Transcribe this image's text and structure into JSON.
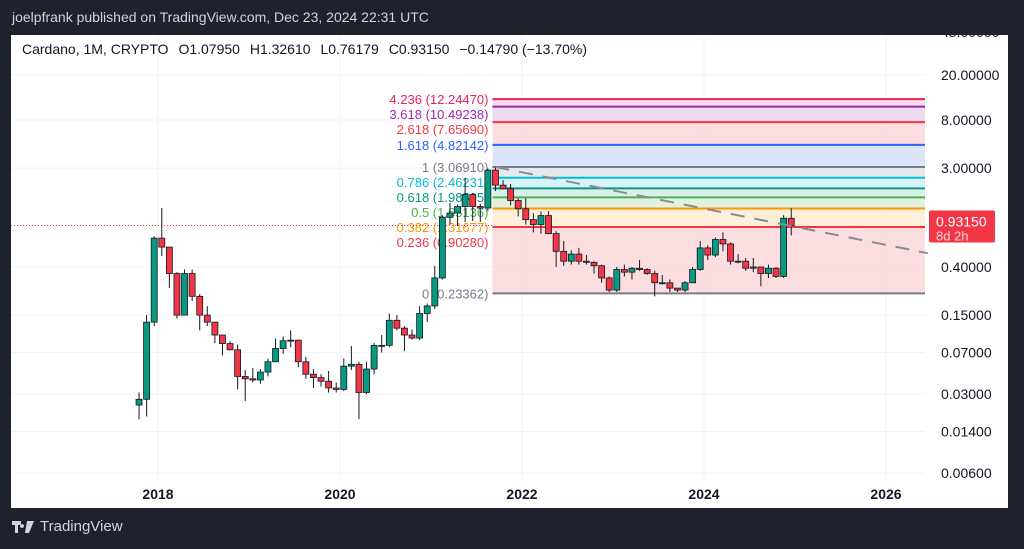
{
  "header": {
    "published": "joelpfrank published on TradingView.com, Dec 23, 2024 22:31 UTC"
  },
  "legend": {
    "symbol": "Cardano, 1M, CRYPTO",
    "open": "O1.07950",
    "high": "H1.32610",
    "low": "L0.76179",
    "close": "C0.93150",
    "change": "−0.14790 (−13.70%)"
  },
  "footer": {
    "brand": "TradingView"
  },
  "colors": {
    "up": "#089981",
    "down": "#f23645",
    "price_label": "#f23645"
  },
  "chart_data": {
    "type": "candlestick",
    "y_scale": "log",
    "grid": true,
    "x_ticks": [
      "2018",
      "2020",
      "2022",
      "2024",
      "2026"
    ],
    "y_ticks": [
      "48.00000",
      "20.00000",
      "8.00000",
      "3.00000",
      "0.40000",
      "0.15000",
      "0.07000",
      "0.03000",
      "0.01400",
      "0.00600"
    ],
    "last_price": {
      "value": "0.93150",
      "countdown": "8d 2h"
    },
    "candles": [
      [
        "2017-10",
        0.024,
        0.031,
        0.018,
        0.027
      ],
      [
        "2017-11",
        0.027,
        0.15,
        0.019,
        0.13
      ],
      [
        "2017-12",
        0.13,
        0.75,
        0.12,
        0.72
      ],
      [
        "2018-01",
        0.72,
        1.33,
        0.5,
        0.6
      ],
      [
        "2018-02",
        0.6,
        0.6,
        0.26,
        0.35
      ],
      [
        "2018-03",
        0.35,
        0.36,
        0.14,
        0.15
      ],
      [
        "2018-04",
        0.15,
        0.38,
        0.15,
        0.35
      ],
      [
        "2018-05",
        0.35,
        0.38,
        0.2,
        0.22
      ],
      [
        "2018-06",
        0.22,
        0.23,
        0.11,
        0.15
      ],
      [
        "2018-07",
        0.15,
        0.18,
        0.12,
        0.13
      ],
      [
        "2018-08",
        0.13,
        0.13,
        0.085,
        0.1
      ],
      [
        "2018-09",
        0.1,
        0.1,
        0.066,
        0.084
      ],
      [
        "2018-10",
        0.084,
        0.088,
        0.073,
        0.074
      ],
      [
        "2018-11",
        0.074,
        0.082,
        0.033,
        0.043
      ],
      [
        "2018-12",
        0.043,
        0.049,
        0.026,
        0.041
      ],
      [
        "2019-01",
        0.041,
        0.051,
        0.038,
        0.04
      ],
      [
        "2019-02",
        0.04,
        0.05,
        0.037,
        0.047
      ],
      [
        "2019-03",
        0.047,
        0.062,
        0.043,
        0.058
      ],
      [
        "2019-04",
        0.058,
        0.093,
        0.058,
        0.076
      ],
      [
        "2019-05",
        0.076,
        0.097,
        0.068,
        0.089
      ],
      [
        "2019-06",
        0.089,
        0.11,
        0.078,
        0.09
      ],
      [
        "2019-07",
        0.09,
        0.091,
        0.052,
        0.058
      ],
      [
        "2019-08",
        0.058,
        0.064,
        0.041,
        0.045
      ],
      [
        "2019-09",
        0.045,
        0.05,
        0.034,
        0.042
      ],
      [
        "2019-10",
        0.042,
        0.045,
        0.035,
        0.039
      ],
      [
        "2019-11",
        0.039,
        0.048,
        0.031,
        0.034
      ],
      [
        "2019-12",
        0.034,
        0.038,
        0.031,
        0.033
      ],
      [
        "2020-01",
        0.033,
        0.062,
        0.032,
        0.053
      ],
      [
        "2020-02",
        0.053,
        0.08,
        0.049,
        0.055
      ],
      [
        "2020-03",
        0.055,
        0.058,
        0.018,
        0.031
      ],
      [
        "2020-04",
        0.031,
        0.058,
        0.03,
        0.05
      ],
      [
        "2020-05",
        0.05,
        0.085,
        0.045,
        0.081
      ],
      [
        "2020-06",
        0.081,
        0.1,
        0.07,
        0.081
      ],
      [
        "2020-07",
        0.081,
        0.155,
        0.078,
        0.135
      ],
      [
        "2020-08",
        0.135,
        0.15,
        0.11,
        0.115
      ],
      [
        "2020-09",
        0.115,
        0.12,
        0.072,
        0.1
      ],
      [
        "2020-10",
        0.1,
        0.112,
        0.091,
        0.094
      ],
      [
        "2020-11",
        0.094,
        0.18,
        0.09,
        0.155
      ],
      [
        "2020-12",
        0.155,
        0.19,
        0.13,
        0.181
      ],
      [
        "2021-01",
        0.181,
        0.41,
        0.17,
        0.32
      ],
      [
        "2021-02",
        0.32,
        1.15,
        0.31,
        1.1
      ],
      [
        "2021-03",
        1.1,
        1.48,
        0.95,
        1.2
      ],
      [
        "2021-04",
        1.2,
        1.43,
        0.92,
        1.37
      ],
      [
        "2021-05",
        1.37,
        2.47,
        1.0,
        1.75
      ],
      [
        "2021-06",
        1.75,
        1.81,
        1.02,
        1.37
      ],
      [
        "2021-07",
        1.37,
        1.45,
        1.0,
        1.33
      ],
      [
        "2021-08",
        1.33,
        2.97,
        1.25,
        2.88
      ],
      [
        "2021-09",
        2.88,
        3.1,
        1.88,
        2.12
      ],
      [
        "2021-10",
        2.12,
        2.35,
        1.94,
        1.97
      ],
      [
        "2021-11",
        1.97,
        2.17,
        1.4,
        1.55
      ],
      [
        "2021-12",
        1.55,
        1.62,
        1.12,
        1.31
      ],
      [
        "2022-01",
        1.31,
        1.62,
        0.95,
        1.05
      ],
      [
        "2022-02",
        1.05,
        1.2,
        0.81,
        0.95
      ],
      [
        "2022-03",
        0.95,
        1.24,
        0.79,
        1.14
      ],
      [
        "2022-04",
        1.14,
        1.25,
        0.78,
        0.79
      ],
      [
        "2022-05",
        0.79,
        0.83,
        0.4,
        0.55
      ],
      [
        "2022-06",
        0.55,
        0.68,
        0.41,
        0.45
      ],
      [
        "2022-07",
        0.45,
        0.56,
        0.42,
        0.52
      ],
      [
        "2022-08",
        0.52,
        0.59,
        0.42,
        0.45
      ],
      [
        "2022-09",
        0.45,
        0.51,
        0.42,
        0.44
      ],
      [
        "2022-10",
        0.44,
        0.45,
        0.35,
        0.41
      ],
      [
        "2022-11",
        0.41,
        0.42,
        0.29,
        0.32
      ],
      [
        "2022-12",
        0.32,
        0.33,
        0.24,
        0.25
      ],
      [
        "2023-01",
        0.25,
        0.4,
        0.24,
        0.38
      ],
      [
        "2023-02",
        0.38,
        0.42,
        0.33,
        0.36
      ],
      [
        "2023-03",
        0.36,
        0.4,
        0.31,
        0.39
      ],
      [
        "2023-04",
        0.39,
        0.46,
        0.37,
        0.38
      ],
      [
        "2023-05",
        0.38,
        0.39,
        0.34,
        0.35
      ],
      [
        "2023-06",
        0.35,
        0.37,
        0.22,
        0.29
      ],
      [
        "2023-07",
        0.29,
        0.34,
        0.28,
        0.29
      ],
      [
        "2023-08",
        0.29,
        0.31,
        0.24,
        0.26
      ],
      [
        "2023-09",
        0.26,
        0.26,
        0.24,
        0.25
      ],
      [
        "2023-10",
        0.25,
        0.3,
        0.24,
        0.29
      ],
      [
        "2023-11",
        0.29,
        0.4,
        0.29,
        0.38
      ],
      [
        "2023-12",
        0.38,
        0.68,
        0.37,
        0.59
      ],
      [
        "2024-01",
        0.59,
        0.62,
        0.46,
        0.51
      ],
      [
        "2024-02",
        0.51,
        0.73,
        0.49,
        0.7
      ],
      [
        "2024-03",
        0.7,
        0.81,
        0.55,
        0.64
      ],
      [
        "2024-04",
        0.64,
        0.66,
        0.42,
        0.45
      ],
      [
        "2024-05",
        0.45,
        0.52,
        0.43,
        0.45
      ],
      [
        "2024-06",
        0.45,
        0.48,
        0.37,
        0.39
      ],
      [
        "2024-07",
        0.39,
        0.48,
        0.36,
        0.4
      ],
      [
        "2024-08",
        0.4,
        0.4,
        0.27,
        0.35
      ],
      [
        "2024-09",
        0.35,
        0.42,
        0.32,
        0.39
      ],
      [
        "2024-10",
        0.39,
        0.4,
        0.32,
        0.33
      ],
      [
        "2024-11",
        0.33,
        1.15,
        0.32,
        1.08
      ],
      [
        "2024-12",
        1.0795,
        1.3261,
        0.76179,
        0.9315
      ]
    ],
    "fib_levels": [
      {
        "label": "4.236 (12.24470)",
        "price": 12.2447,
        "color": "#e91e63",
        "fill": "#f8d7e3"
      },
      {
        "label": "3.618 (10.49238)",
        "price": 10.49238,
        "color": "#9c27b0",
        "fill": "#ead5ef"
      },
      {
        "label": "2.618 (7.65690)",
        "price": 7.6569,
        "color": "#f23645",
        "fill": "#fbd7da"
      },
      {
        "label": "1.618 (4.82142)",
        "price": 4.82142,
        "color": "#2962ff",
        "fill": "#d4e0fb"
      },
      {
        "label": "1 (3.06910)",
        "price": 3.0691,
        "color": "#787b86",
        "fill": "#e4e5e8"
      },
      {
        "label": "0.786 (2.46231)",
        "price": 2.46231,
        "color": "#00bcd4",
        "fill": "#d0f1f5"
      },
      {
        "label": "0.618 (1.98595)",
        "price": 1.98595,
        "color": "#089981",
        "fill": "#d3ece7"
      },
      {
        "label": "0.5 (1.65136)",
        "price": 1.65136,
        "color": "#4caf50",
        "fill": "#dcf0dd"
      },
      {
        "label": "0.382 (1.31677)",
        "price": 1.31677,
        "color": "#ff9800",
        "fill": "#fdecd3"
      },
      {
        "label": "0.236 (0.90280)",
        "price": 0.9028,
        "color": "#f23645",
        "fill": "#fbd7da"
      },
      {
        "label": "0 (0.23362)",
        "price": 0.23362,
        "color": "#787b86",
        "fill": null
      }
    ],
    "fib_start": "2021-09",
    "trend_line": {
      "from": [
        "2021-09",
        3.0691
      ],
      "to": [
        "2026-06",
        0.53
      ],
      "style": "dashed"
    }
  }
}
